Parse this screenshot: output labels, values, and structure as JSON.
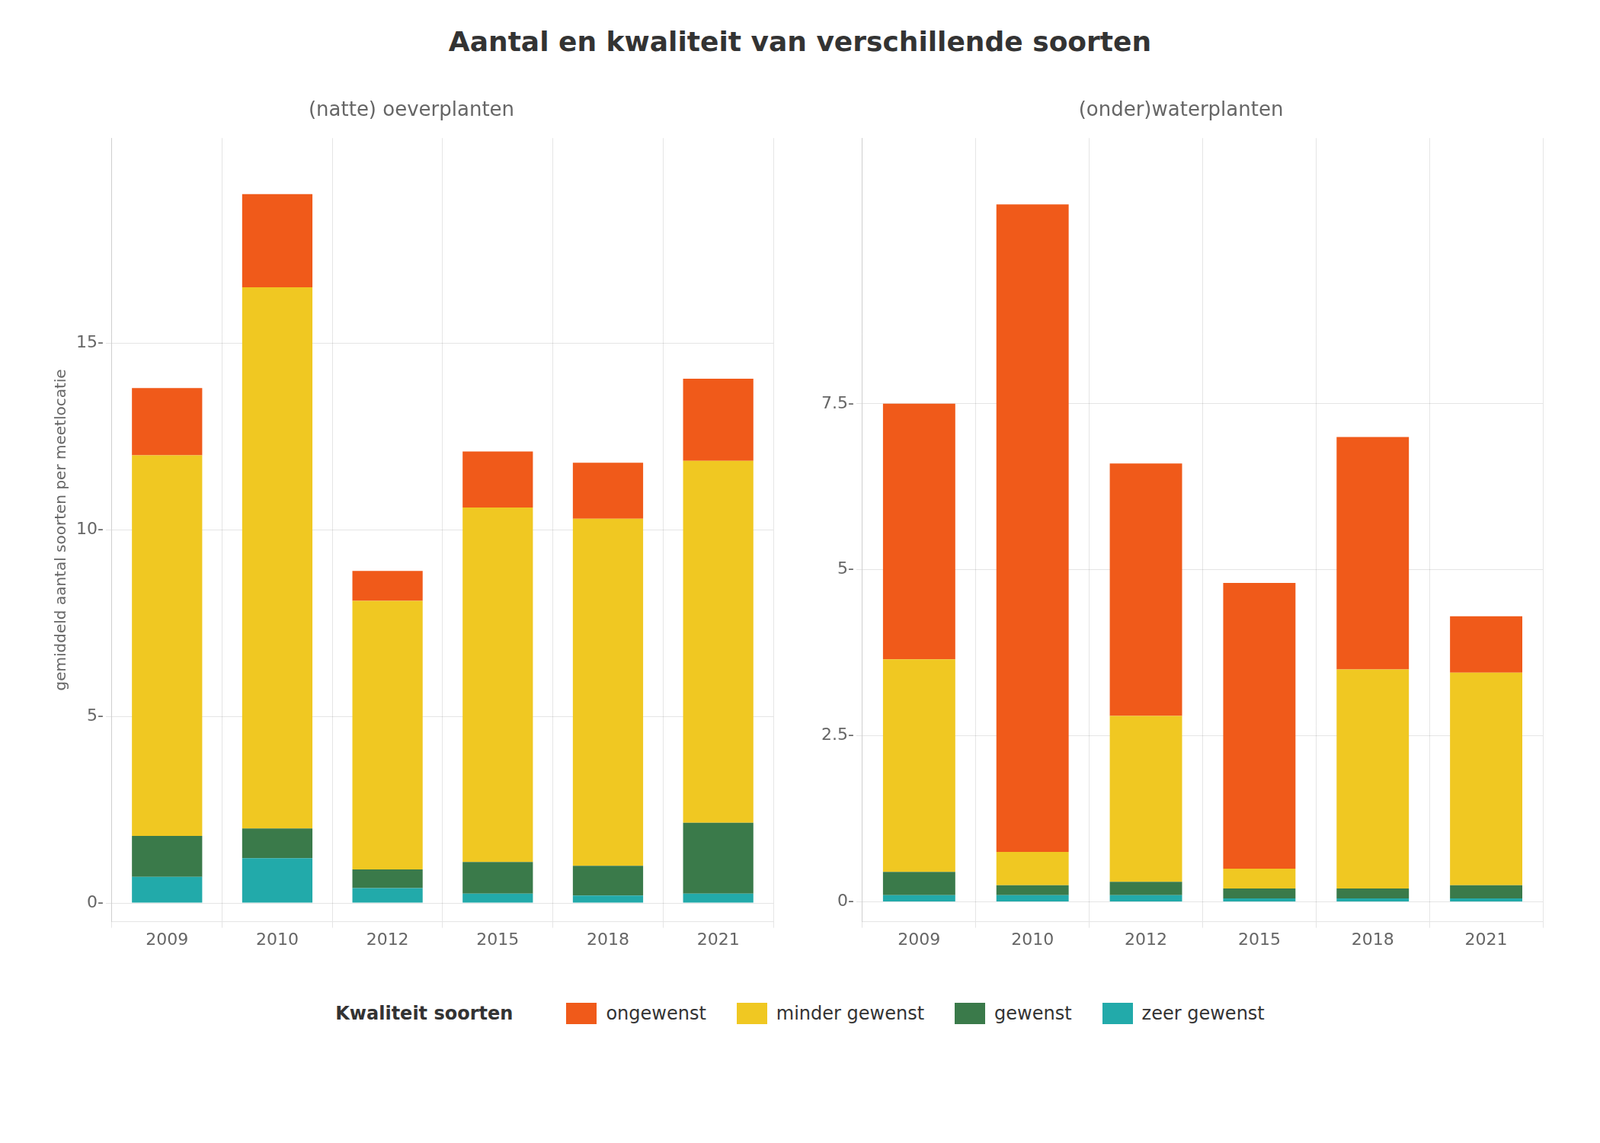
{
  "title": "Aantal en kwaliteit van verschillende soorten",
  "annotations": [
    "Kwaliteit soorten"
  ],
  "legend": "bottom",
  "chart_data": [
    {
      "type": "bar",
      "subtitle": "(natte) oeverplanten",
      "ylabel": "gemiddeld aantal soorten per meetlocatie",
      "categories": [
        "2009",
        "2010",
        "2012",
        "2015",
        "2018",
        "2021"
      ],
      "stacked": true,
      "grid": true,
      "ylim": [
        -0.5,
        20.5
      ],
      "yticks": [
        {
          "value": 0,
          "label": "0-"
        },
        {
          "value": 5,
          "label": "5-"
        },
        {
          "value": 10,
          "label": "10-"
        },
        {
          "value": 15,
          "label": "15-"
        }
      ],
      "series": [
        {
          "name": "zeer gewenst",
          "color": "#22AAAA",
          "values": [
            0.7,
            1.2,
            0.4,
            0.25,
            0.2,
            0.25
          ]
        },
        {
          "name": "gewenst",
          "color": "#3A7A4A",
          "values": [
            1.1,
            0.8,
            0.5,
            0.85,
            0.8,
            1.9
          ]
        },
        {
          "name": "minder gewenst",
          "color": "#F0C822",
          "values": [
            10.2,
            14.5,
            7.2,
            9.5,
            9.3,
            9.7
          ]
        },
        {
          "name": "ongewenst",
          "color": "#F05A1A",
          "values": [
            1.8,
            2.5,
            0.8,
            1.5,
            1.5,
            2.2
          ]
        }
      ]
    },
    {
      "type": "bar",
      "subtitle": "(onder)waterplanten",
      "categories": [
        "2009",
        "2010",
        "2012",
        "2015",
        "2018",
        "2021"
      ],
      "stacked": true,
      "grid": true,
      "ylim": [
        -0.3,
        11.5
      ],
      "yticks": [
        {
          "value": 0.0,
          "label": "0-"
        },
        {
          "value": 2.5,
          "label": "2.5-"
        },
        {
          "value": 5.0,
          "label": "5-"
        },
        {
          "value": 7.5,
          "label": "7.5-"
        }
      ],
      "series": [
        {
          "name": "zeer gewenst",
          "color": "#22AAAA",
          "values": [
            0.1,
            0.1,
            0.1,
            0.05,
            0.05,
            0.05
          ]
        },
        {
          "name": "gewenst",
          "color": "#3A7A4A",
          "values": [
            0.35,
            0.15,
            0.2,
            0.15,
            0.15,
            0.2
          ]
        },
        {
          "name": "minder gewenst",
          "color": "#F0C822",
          "values": [
            3.2,
            0.5,
            2.5,
            0.3,
            3.3,
            3.2
          ]
        },
        {
          "name": "ongewenst",
          "color": "#F05A1A",
          "values": [
            3.85,
            9.75,
            3.8,
            4.3,
            3.5,
            0.85
          ]
        }
      ]
    }
  ]
}
